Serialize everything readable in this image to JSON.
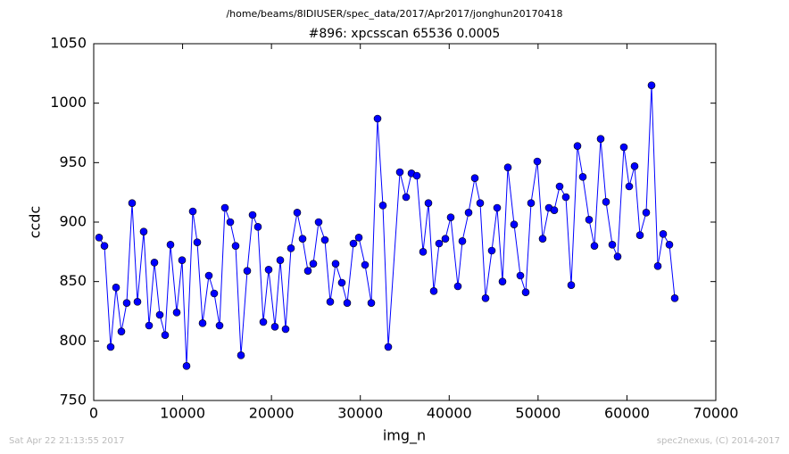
{
  "chart_data": {
    "type": "line",
    "suptitle": "/home/beams/8IDIUSER/spec_data/2017/Apr2017/jonghun20170418",
    "title": "#896: xpcsscan 65536 0.0005",
    "xlabel": "img_n",
    "ylabel": "ccdc",
    "footer_left": "Sat Apr 22 21:13:55 2017",
    "footer_right": "spec2nexus, (C) 2014-2017",
    "color": "#0000ff",
    "x": [
      603,
      1205,
      1908,
      2511,
      3113,
      3716,
      4318,
      4921,
      5624,
      6227,
      6829,
      7432,
      8034,
      8637,
      9340,
      9942,
      10445,
      11148,
      11650,
      12252,
      12955,
      13558,
      14161,
      14763,
      15366,
      15968,
      16571,
      17274,
      17877,
      18479,
      19082,
      19684,
      20387,
      20990,
      21592,
      22195,
      22898,
      23501,
      24103,
      24706,
      25308,
      26011,
      26614,
      27217,
      27919,
      28522,
      29225,
      29828,
      30531,
      31234,
      31937,
      32539,
      33142,
      34448,
      35151,
      35753,
      36356,
      37059,
      37661,
      38264,
      38866,
      39569,
      40172,
      40975,
      41478,
      42181,
      42884,
      43486,
      44089,
      44792,
      45394,
      45997,
      46600,
      47303,
      48006,
      48608,
      49211,
      49914,
      50516,
      51219,
      51822,
      52424,
      53127,
      53730,
      54433,
      55036,
      55739,
      56341,
      57044,
      57647,
      58350,
      58952,
      59655,
      60258,
      60860,
      61463,
      62166,
      62769,
      63472,
      64074,
      64777,
      65380
    ],
    "values": [
      887,
      880,
      795,
      845,
      808,
      832,
      916,
      833,
      892,
      813,
      866,
      822,
      805,
      881,
      824,
      868,
      779,
      909,
      883,
      815,
      855,
      840,
      813,
      912,
      900,
      880,
      788,
      859,
      906,
      896,
      816,
      860,
      812,
      868,
      810,
      878,
      908,
      886,
      859,
      865,
      900,
      885,
      833,
      865,
      849,
      832,
      882,
      887,
      864,
      832,
      987,
      914,
      795,
      942,
      921,
      941,
      939,
      875,
      916,
      842,
      882,
      886,
      904,
      846,
      884,
      908,
      937,
      916,
      836,
      876,
      912,
      850,
      946,
      898,
      855,
      841,
      916,
      951,
      886,
      912,
      910,
      930,
      921,
      847,
      964,
      938,
      902,
      880,
      970,
      917,
      881,
      871,
      963,
      930,
      947,
      889,
      908,
      1015,
      863,
      890,
      881,
      836
    ],
    "xlim": [
      0,
      70000
    ],
    "xticks": [
      0,
      10000,
      20000,
      30000,
      40000,
      50000,
      60000,
      70000
    ],
    "ylim": [
      750,
      1050
    ],
    "yticks": [
      750,
      800,
      850,
      900,
      950,
      1000,
      1050
    ]
  }
}
